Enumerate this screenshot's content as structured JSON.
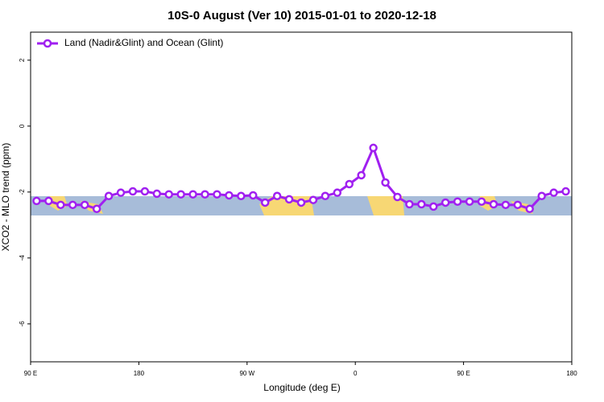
{
  "chart_data": {
    "type": "line",
    "title": "10S-0 August (Ver 10)   2015-01-01 to 2020-12-18",
    "x_label": "Longitude (deg E)",
    "y_label": "XCO2 - MLO trend (ppm)",
    "x": [
      95,
      105,
      115,
      125,
      135,
      145,
      155,
      165,
      175,
      185,
      195,
      205,
      215,
      225,
      235,
      245,
      255,
      265,
      275,
      285,
      295,
      305,
      315,
      325,
      335,
      345,
      355,
      365,
      375,
      385,
      395,
      405,
      415,
      425,
      435,
      445,
      455,
      465,
      475,
      485,
      495,
      505,
      515,
      525,
      535
    ],
    "series": [
      {
        "name": "Land (Nadir&Glint) and Ocean (Glint)",
        "color": "#a020f0",
        "values": [
          -2.27,
          -2.27,
          -2.39,
          -2.39,
          -2.39,
          -2.51,
          -2.12,
          -2.02,
          -1.98,
          -1.98,
          -2.05,
          -2.07,
          -2.07,
          -2.07,
          -2.07,
          -2.07,
          -2.1,
          -2.12,
          -2.1,
          -2.32,
          -2.12,
          -2.22,
          -2.32,
          -2.24,
          -2.12,
          -2.02,
          -1.76,
          -1.49,
          -0.66,
          -1.71,
          -2.15,
          -2.37,
          -2.37,
          -2.44,
          -2.32,
          -2.29,
          -2.29,
          -2.29,
          -2.37,
          -2.39,
          -2.39,
          -2.51,
          -2.12,
          -2.02,
          -1.98
        ]
      }
    ],
    "xlim": [
      90,
      540
    ],
    "ylim": [
      -7.15,
      2.85
    ],
    "xticks": [
      {
        "value": 90,
        "label": "90 E"
      },
      180,
      {
        "value": 270,
        "label": "90 W"
      },
      {
        "value": 360,
        "label": "0"
      },
      {
        "value": 450,
        "label": "90 E"
      },
      {
        "value": 540,
        "label": "180"
      }
    ],
    "yticks": [
      2,
      0,
      -2,
      -4,
      -6
    ],
    "legend": "top-left"
  }
}
